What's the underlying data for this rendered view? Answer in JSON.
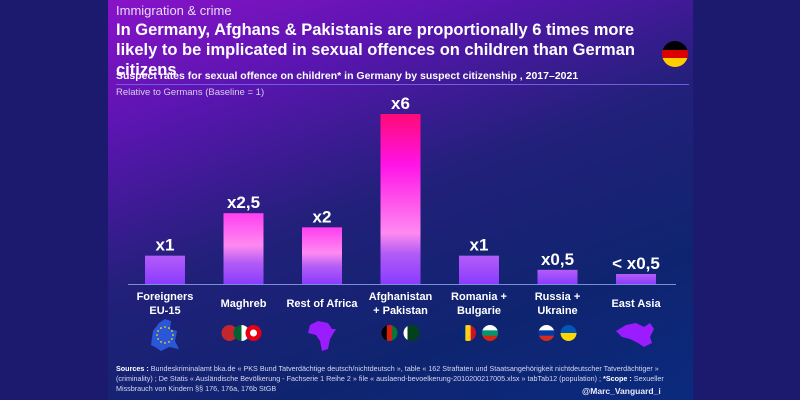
{
  "kicker": "Immigration & crime",
  "headline": "In Germany, Afghans & Pakistanis are proportionally 6 times more likely to be implicated in sexual offences on children than German citizens",
  "flag_icon": "germany-flag-icon",
  "subtitle": "Suspect rates for sexual offence on children* in Germany by suspect citizenship , 2017–2021",
  "relative_note": "Relative to Germans (Baseline = 1)",
  "colors": {
    "bar_top": "#ff0a7a",
    "bar_mid": "#ff4de8",
    "bar_bottom": "#8a3cff",
    "background_dark": "#1c1a6e",
    "icon_purple": "#9b1cff"
  },
  "chart_data": {
    "type": "bar",
    "title": "Suspect rates for sexual offence on children* in Germany by suspect citizenship , 2017–2021",
    "subtitle": "Relative to Germans (Baseline = 1)",
    "xlabel": "",
    "ylabel": "",
    "ylim": [
      0,
      6
    ],
    "grid": false,
    "categories": [
      {
        "label_lines": [
          "Foreigners",
          "EU-15"
        ],
        "icon": "eu-map-icon"
      },
      {
        "label_lines": [
          "Maghreb"
        ],
        "icon": "morocco-algeria-tunisia-flags-icon"
      },
      {
        "label_lines": [
          "Rest of Africa"
        ],
        "icon": "africa-map-icon"
      },
      {
        "label_lines": [
          "Afghanistan",
          "+ Pakistan"
        ],
        "icon": "afghanistan-pakistan-flags-icon"
      },
      {
        "label_lines": [
          "Romania +",
          "Bulgarie"
        ],
        "icon": "romania-bulgaria-flags-icon"
      },
      {
        "label_lines": [
          "Russia +",
          "Ukraine"
        ],
        "icon": "russia-ukraine-flags-icon"
      },
      {
        "label_lines": [
          "East Asia"
        ],
        "icon": "east-asia-map-icon"
      }
    ],
    "values": [
      1,
      2.5,
      2,
      6,
      1,
      0.5,
      0.35
    ],
    "data_labels": [
      "x1",
      "x2,5",
      "x2",
      "x6",
      "x1",
      "x0,5",
      "< x0,5"
    ]
  },
  "sources": {
    "label": "Sources :",
    "text": " Bundeskriminalamt bka.de « PKS Bund Tatverdächtige deutsch/nichtdeutsch », table « 162 Straftaten und Staatsangehörigkeit nichtdeutscher Tatverdächtiger » (criminality) ; De Statis « Ausländische Bevölkerung - Fachserie 1 Reihe 2 » file « auslaend-bevoelkerung-2010200217005.xlsx » tabTab12 (population) ; ",
    "scope_label": "*Scope :",
    "scope_text": " Sexueller Missbrauch von Kindern §§ 176, 176a, 176b StGB"
  },
  "handle": "@Marc_Vanguard_i"
}
